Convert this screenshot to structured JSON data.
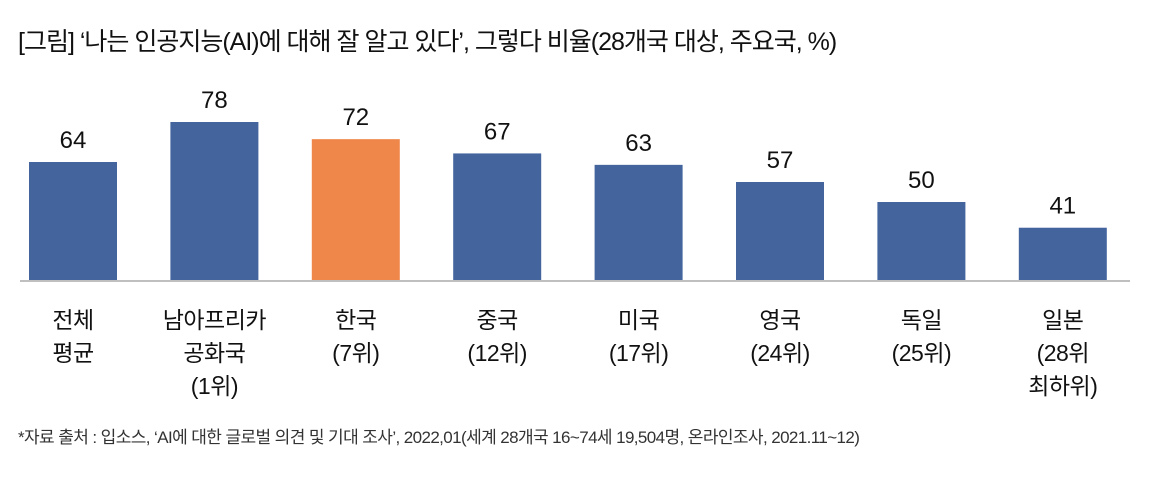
{
  "chart_data": {
    "type": "bar",
    "title": "[그림] ‘나는 인공지능(AI)에 대해 잘 알고 있다’, 그렇다 비율(28개국 대상, 주요국, %)",
    "categories": [
      "전체\n평균",
      "남아프리카\n공화국\n(1위)",
      "한국\n(7위)",
      "중국\n(12위)",
      "미국\n(17위)",
      "영국\n(24위)",
      "독일\n(25위)",
      "일본\n(28위\n최하위)"
    ],
    "values": [
      64,
      78,
      72,
      67,
      63,
      57,
      50,
      41
    ],
    "highlight_index": 2,
    "colors": {
      "default": "#44649e",
      "highlight": "#f0874a",
      "axis": "#bfbfbf"
    },
    "xlabel": "",
    "ylabel": "",
    "ylim": [
      22.7,
      78
    ],
    "grid": false,
    "note": "*자료 출처 : 입소스, ‘AI에 대한 글로벌 의견 및 기대 조사’, 2022,01(세계 28개국 16~74세 19,504명, 온라인조사, 2021.11~12)"
  }
}
